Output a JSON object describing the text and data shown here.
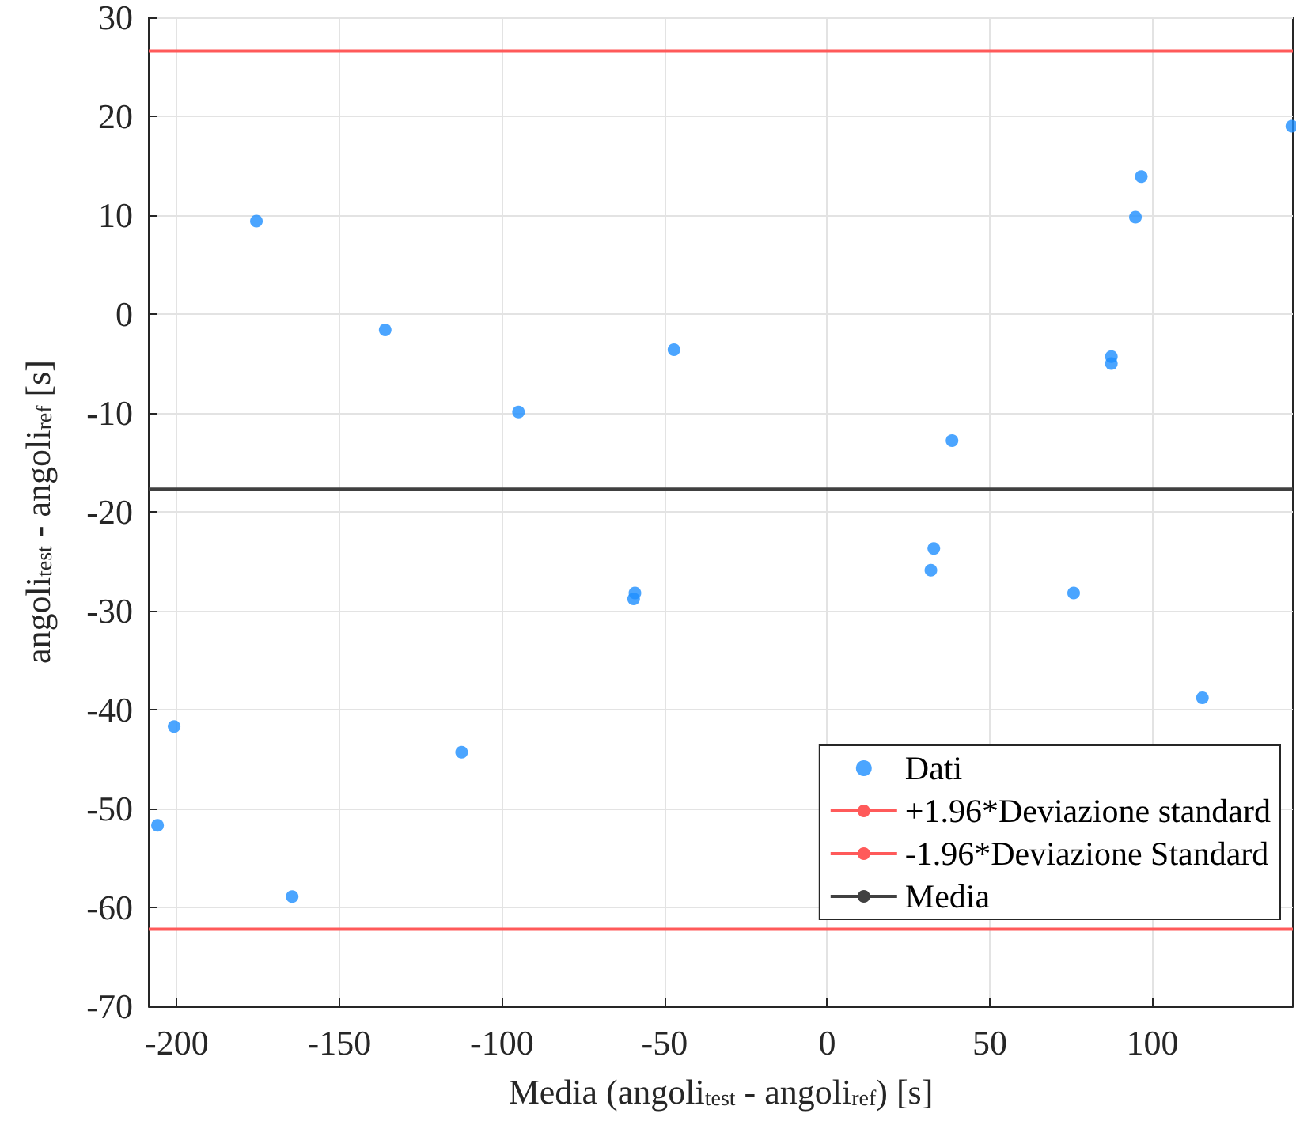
{
  "chart_data": {
    "type": "scatter",
    "xlabel": "Media (angoli$_{test}$ - angoli$_{ref}$) [s]",
    "ylabel": "angoli$_{test}$ - angoli$_{ref}$ [s]",
    "series": [
      {
        "name": "Dati",
        "color": "#1e8fff",
        "marker": "circle",
        "x": [
          -205.9,
          -200.8,
          -175.5,
          -164.5,
          -135.9,
          -112.4,
          -94.9,
          -59.5,
          -59.1,
          -47.1,
          31.9,
          32.8,
          38.4,
          75.8,
          87.4,
          87.4,
          94.8,
          96.6,
          115.4,
          142.9
        ],
        "values": [
          -51.7,
          -41.7,
          9.4,
          -58.9,
          -1.6,
          -44.3,
          -9.9,
          -28.8,
          -28.2,
          -3.6,
          -25.9,
          -23.7,
          -12.8,
          -28.2,
          -4.3,
          -5.0,
          9.8,
          13.9,
          -38.8,
          19.0
        ]
      }
    ],
    "ref_lines": [
      {
        "axis": "y",
        "value": 26.6,
        "label": "+1.96*Deviazione standard",
        "color": "#ff5a5a"
      },
      {
        "axis": "y",
        "value": -62.2,
        "label": "-1.96*Deviazione Standard",
        "color": "#ff5a5a"
      },
      {
        "axis": "y",
        "value": -17.7,
        "label": "Media",
        "color": "#404040"
      }
    ],
    "xlim": [
      -208.6,
      143.2
    ],
    "xticks": [
      -200,
      -150,
      -100,
      -50,
      0,
      50,
      100
    ],
    "ylim": [
      -70,
      30
    ],
    "yticks": [
      -70,
      -60,
      -50,
      -40,
      -30,
      -20,
      -10,
      0,
      10,
      20,
      30
    ],
    "grid": true,
    "legend": "bottom right"
  }
}
